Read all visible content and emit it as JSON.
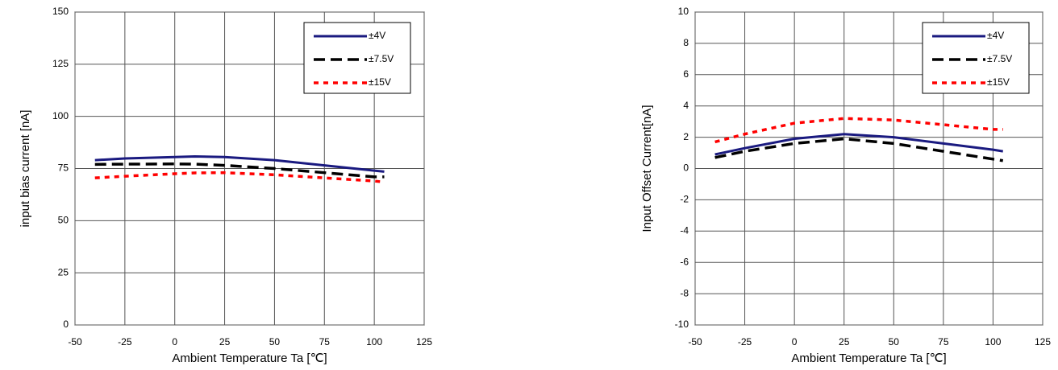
{
  "chart_data": [
    {
      "type": "line",
      "x_label": "Ambient Temperature Ta [℃]",
      "y_label": "input bias current [nA]",
      "xlim": [
        -50,
        125
      ],
      "xticks": [
        -50,
        -25,
        0,
        25,
        50,
        75,
        100,
        125
      ],
      "ylim": [
        0,
        150
      ],
      "yticks": [
        0,
        25,
        50,
        75,
        100,
        125,
        150
      ],
      "grid": true,
      "legend": "upper right",
      "x": [
        -40,
        -25,
        0,
        10,
        25,
        50,
        75,
        100,
        105
      ],
      "series": [
        {
          "name": "±4V",
          "color": "#1a1a80",
          "style": "solid",
          "values": [
            79,
            79.8,
            80.5,
            80.8,
            80.5,
            79,
            76.5,
            74,
            73.5
          ]
        },
        {
          "name": "±7.5V",
          "color": "#000000",
          "style": "dashed",
          "values": [
            77,
            77.1,
            77.2,
            77.1,
            76.5,
            75,
            73,
            71,
            71
          ]
        },
        {
          "name": "±15V",
          "color": "#ff0000",
          "style": "dotted",
          "values": [
            70.5,
            71.3,
            72.5,
            72.9,
            73,
            72,
            70.5,
            69,
            68.5
          ]
        }
      ]
    },
    {
      "type": "line",
      "x_label": "Ambient Temperature Ta [℃]",
      "y_label": "Input Offset Current[nA]",
      "xlim": [
        -50,
        125
      ],
      "xticks": [
        -50,
        -25,
        0,
        25,
        50,
        75,
        100,
        125
      ],
      "ylim": [
        -10,
        10
      ],
      "yticks": [
        -10,
        -8,
        -6,
        -4,
        -2,
        0,
        2,
        4,
        6,
        8,
        10
      ],
      "grid": true,
      "legend": "upper right",
      "x": [
        -40,
        -25,
        0,
        25,
        50,
        75,
        100,
        105
      ],
      "series": [
        {
          "name": "±4V",
          "color": "#1a1a80",
          "style": "solid",
          "values": [
            0.9,
            1.3,
            1.9,
            2.2,
            2.0,
            1.6,
            1.2,
            1.1
          ]
        },
        {
          "name": "±7.5V",
          "color": "#000000",
          "style": "dashed",
          "values": [
            0.7,
            1.1,
            1.6,
            1.9,
            1.6,
            1.1,
            0.6,
            0.5
          ]
        },
        {
          "name": "±15V",
          "color": "#ff0000",
          "style": "dotted",
          "values": [
            1.7,
            2.2,
            2.9,
            3.2,
            3.1,
            2.8,
            2.5,
            2.5
          ]
        }
      ]
    }
  ]
}
